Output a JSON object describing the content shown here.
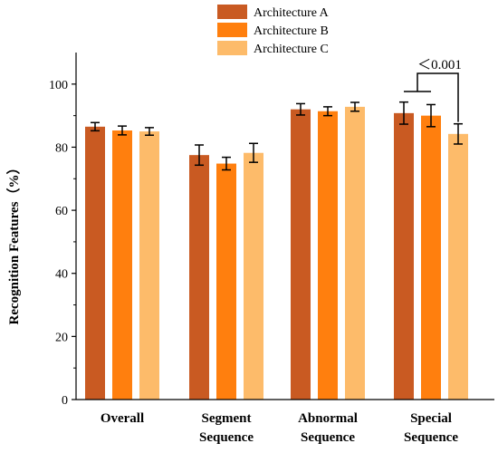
{
  "colors": {
    "axis": "#000000",
    "background": "#ffffff"
  },
  "chart_data": {
    "type": "bar",
    "title": "",
    "xlabel": "",
    "ylabel": "Recognition Features（%）",
    "ylim": [
      0,
      110
    ],
    "yticks": [
      0,
      20,
      40,
      60,
      80,
      100
    ],
    "ytick_labels": [
      "0",
      "20",
      "40",
      "60",
      "80",
      "100"
    ],
    "categories": [
      [
        "Overall"
      ],
      [
        "Segment",
        "Sequence"
      ],
      [
        "Abnormal",
        "Sequence"
      ],
      [
        "Special",
        "Sequence"
      ]
    ],
    "series": [
      {
        "name": "Architecture A",
        "color": "#c95a22",
        "values": [
          86.5,
          77.5,
          92.0,
          90.8
        ],
        "errors": [
          1.3,
          3.2,
          1.8,
          3.5
        ]
      },
      {
        "name": "Architecture B",
        "color": "#ff7f0e",
        "values": [
          85.3,
          74.8,
          91.4,
          90.0
        ],
        "errors": [
          1.4,
          2.0,
          1.4,
          3.5
        ]
      },
      {
        "name": "Architecture C",
        "color": "#fdbb6a",
        "values": [
          85.0,
          78.2,
          92.8,
          84.2
        ],
        "errors": [
          1.2,
          3.0,
          1.4,
          3.2
        ]
      }
    ],
    "legend_position": "top",
    "grid": false,
    "annotation": {
      "text": "＜0.001",
      "category_index": 3,
      "from_series": [
        0,
        1
      ],
      "to_series": 2
    }
  }
}
